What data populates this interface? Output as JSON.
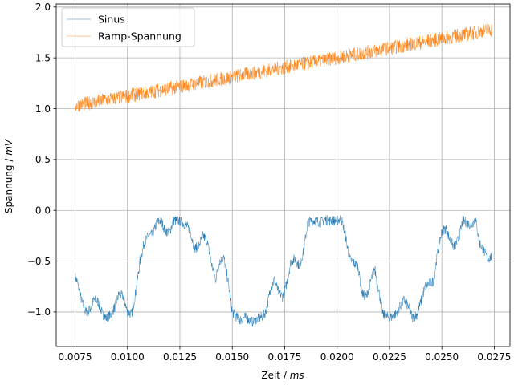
{
  "chart_data": {
    "type": "line",
    "xlabel": {
      "prefix": "Zeit / ",
      "unit": "ms"
    },
    "ylabel": {
      "prefix": "Spannung / ",
      "unit": "mV"
    },
    "xlim": [
      0.0066,
      0.02825
    ],
    "ylim": [
      -1.34,
      2.03
    ],
    "xticks": [
      0.0075,
      0.01,
      0.0125,
      0.015,
      0.0175,
      0.02,
      0.0225,
      0.025,
      0.0275
    ],
    "xtick_labels": [
      "0.0075",
      "0.0100",
      "0.0125",
      "0.0150",
      "0.0175",
      "0.0200",
      "0.0225",
      "0.0250",
      "0.0275"
    ],
    "yticks": [
      -1.0,
      -0.5,
      0.0,
      0.5,
      1.0,
      1.5,
      2.0
    ],
    "ytick_labels": [
      "−1.0",
      "−0.5",
      "0.0",
      "0.5",
      "1.0",
      "1.5",
      "2.0"
    ],
    "grid": true,
    "legend_position": "top-left",
    "x_range": [
      0.0075,
      0.0274
    ],
    "series": [
      {
        "name": "Sinus",
        "color": "#1f77b4",
        "noise": 0.05,
        "x": [
          0.0075,
          0.0076,
          0.0078,
          0.008,
          0.0082,
          0.0084,
          0.0086,
          0.0088,
          0.009,
          0.0092,
          0.0094,
          0.0096,
          0.0098,
          0.01,
          0.0102,
          0.0104,
          0.0106,
          0.0108,
          0.011,
          0.0112,
          0.0114,
          0.0116,
          0.0118,
          0.012,
          0.0122,
          0.0124,
          0.0126,
          0.0128,
          0.013,
          0.0132,
          0.0134,
          0.0136,
          0.0138,
          0.014,
          0.0142,
          0.0144,
          0.0146,
          0.0148,
          0.015,
          0.0152,
          0.0154,
          0.0156,
          0.0158,
          0.016,
          0.0162,
          0.0164,
          0.0166,
          0.0168,
          0.017,
          0.0172,
          0.0174,
          0.0176,
          0.0178,
          0.018,
          0.0182,
          0.0184,
          0.0186,
          0.0188,
          0.019,
          0.0192,
          0.0194,
          0.0196,
          0.0198,
          0.02,
          0.0202,
          0.0204,
          0.0206,
          0.0208,
          0.021,
          0.0212,
          0.0214,
          0.0216,
          0.0218,
          0.022,
          0.0222,
          0.0224,
          0.0226,
          0.0228,
          0.023,
          0.0232,
          0.0234,
          0.0236,
          0.0238,
          0.024,
          0.0242,
          0.0244,
          0.0246,
          0.0248,
          0.025,
          0.0252,
          0.0254,
          0.0256,
          0.0258,
          0.026,
          0.0262,
          0.0264,
          0.0266,
          0.0268,
          0.027,
          0.0272,
          0.0274
        ],
        "y": [
          -0.65,
          -0.7,
          -0.88,
          -1.0,
          -0.98,
          -0.88,
          -0.9,
          -1.02,
          -1.06,
          -1.03,
          -0.95,
          -0.82,
          -0.85,
          -1.0,
          -1.02,
          -0.8,
          -0.5,
          -0.32,
          -0.25,
          -0.24,
          -0.12,
          -0.1,
          -0.2,
          -0.22,
          -0.1,
          -0.1,
          -0.12,
          -0.15,
          -0.2,
          -0.38,
          -0.35,
          -0.25,
          -0.3,
          -0.52,
          -0.68,
          -0.5,
          -0.47,
          -0.7,
          -1.0,
          -1.05,
          -1.08,
          -1.05,
          -1.08,
          -1.1,
          -1.07,
          -1.05,
          -1.0,
          -0.8,
          -0.68,
          -0.8,
          -0.85,
          -0.72,
          -0.5,
          -0.48,
          -0.55,
          -0.4,
          -0.12,
          -0.1,
          -0.1,
          -0.12,
          -0.09,
          -0.1,
          -0.1,
          -0.1,
          -0.08,
          -0.25,
          -0.48,
          -0.52,
          -0.55,
          -0.82,
          -0.85,
          -0.7,
          -0.58,
          -0.8,
          -1.03,
          -1.05,
          -1.05,
          -1.02,
          -0.95,
          -0.88,
          -0.95,
          -1.06,
          -1.03,
          -0.9,
          -0.75,
          -0.72,
          -0.7,
          -0.42,
          -0.2,
          -0.18,
          -0.3,
          -0.36,
          -0.28,
          -0.1,
          -0.12,
          -0.15,
          -0.08,
          -0.32,
          -0.4,
          -0.48,
          -0.45
        ]
      },
      {
        "name": "Ramp-Spannung",
        "color": "#ff7f0e",
        "noise": 0.07,
        "x": [
          0.0075,
          0.0274
        ],
        "y": [
          1.03,
          1.78
        ]
      }
    ]
  }
}
